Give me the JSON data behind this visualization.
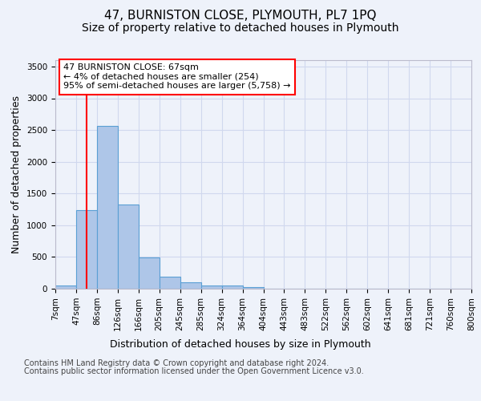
{
  "title": "47, BURNISTON CLOSE, PLYMOUTH, PL7 1PQ",
  "subtitle": "Size of property relative to detached houses in Plymouth",
  "xlabel": "Distribution of detached houses by size in Plymouth",
  "ylabel": "Number of detached properties",
  "annotation_text": "47 BURNISTON CLOSE: 67sqm\n← 4% of detached houses are smaller (254)\n95% of semi-detached houses are larger (5,758) →",
  "footer_line1": "Contains HM Land Registry data © Crown copyright and database right 2024.",
  "footer_line2": "Contains public sector information licensed under the Open Government Licence v3.0.",
  "bin_labels": [
    "7sqm",
    "47sqm",
    "86sqm",
    "126sqm",
    "166sqm",
    "205sqm",
    "245sqm",
    "285sqm",
    "324sqm",
    "364sqm",
    "404sqm",
    "443sqm",
    "483sqm",
    "522sqm",
    "562sqm",
    "602sqm",
    "641sqm",
    "681sqm",
    "721sqm",
    "760sqm",
    "800sqm"
  ],
  "bar_heights": [
    50,
    1240,
    2560,
    1330,
    490,
    185,
    100,
    50,
    45,
    30,
    0,
    0,
    0,
    0,
    0,
    0,
    0,
    0,
    0,
    0
  ],
  "bar_color": "#aec6e8",
  "bar_edge_color": "#5a9fd4",
  "ylim": [
    0,
    3600
  ],
  "yticks": [
    0,
    500,
    1000,
    1500,
    2000,
    2500,
    3000,
    3500
  ],
  "background_color": "#eef2fa",
  "plot_bg_color": "#eef2fa",
  "grid_color": "#d0d8ee",
  "title_fontsize": 11,
  "subtitle_fontsize": 10,
  "axis_label_fontsize": 9,
  "tick_fontsize": 7.5,
  "annotation_fontsize": 8,
  "footer_fontsize": 7
}
